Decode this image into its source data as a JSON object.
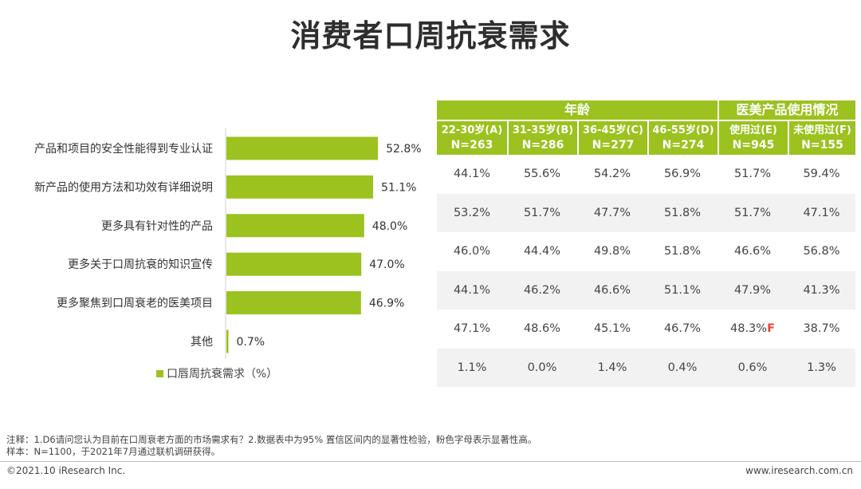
{
  "title": "消费者口周抗衰需求",
  "chart_data": {
    "type": "bar",
    "orientation": "horizontal",
    "categories": [
      "产品和项目的安全性能得到专业认证",
      "新产品的使用方法和功效有详细说明",
      "更多具有针对性的产品",
      "更多关于口周抗衰的知识宣传",
      "更多聚焦到口周衰老的医美项目",
      "其他"
    ],
    "values": [
      52.8,
      51.1,
      48.0,
      47.0,
      46.9,
      0.7
    ],
    "value_labels": [
      "52.8%",
      "51.1%",
      "48.0%",
      "47.0%",
      "46.9%",
      "0.7%"
    ],
    "series": [
      {
        "name": "口唇周抗衰需求（%）",
        "color": "#9bc21f"
      }
    ],
    "legend_position": "bottom",
    "grid": false
  },
  "table": {
    "groups": [
      {
        "label": "年龄",
        "span": 4
      },
      {
        "label": "医美产品使用情况",
        "span": 2
      }
    ],
    "columns": [
      {
        "label": "22-30岁(A)",
        "n": "N=263"
      },
      {
        "label": "31-35岁(B)",
        "n": "N=286"
      },
      {
        "label": "36-45岁(C)",
        "n": "N=277"
      },
      {
        "label": "46-55岁(D)",
        "n": "N=274"
      },
      {
        "label": "使用过(E)",
        "n": "N=945"
      },
      {
        "label": "未使用过(F)",
        "n": "N=155"
      }
    ],
    "rows": [
      [
        {
          "v": "44.1%"
        },
        {
          "v": "55.6%"
        },
        {
          "v": "54.2%"
        },
        {
          "v": "56.9%"
        },
        {
          "v": "51.7%"
        },
        {
          "v": "59.4%"
        }
      ],
      [
        {
          "v": "53.2%"
        },
        {
          "v": "51.7%"
        },
        {
          "v": "47.7%"
        },
        {
          "v": "51.8%"
        },
        {
          "v": "51.7%"
        },
        {
          "v": "47.1%"
        }
      ],
      [
        {
          "v": "46.0%"
        },
        {
          "v": "44.4%"
        },
        {
          "v": "49.8%"
        },
        {
          "v": "51.8%"
        },
        {
          "v": "46.6%"
        },
        {
          "v": "56.8%"
        }
      ],
      [
        {
          "v": "44.1%"
        },
        {
          "v": "46.2%"
        },
        {
          "v": "46.6%"
        },
        {
          "v": "51.1%"
        },
        {
          "v": "47.9%"
        },
        {
          "v": "41.3%"
        }
      ],
      [
        {
          "v": "47.1%"
        },
        {
          "v": "48.6%"
        },
        {
          "v": "45.1%"
        },
        {
          "v": "46.7%"
        },
        {
          "v": "48.3%",
          "sig": "F"
        },
        {
          "v": "38.7%"
        }
      ],
      [
        {
          "v": "1.1%"
        },
        {
          "v": "0.0%"
        },
        {
          "v": "1.4%"
        },
        {
          "v": "0.4%"
        },
        {
          "v": "0.6%"
        },
        {
          "v": "1.3%"
        }
      ]
    ],
    "header_color": "#9bc21f",
    "significance_color": "#e8463e"
  },
  "notes": {
    "note1": "注释：1.D6请问您认为目前在口周衰老方面的市场需求有？2.数据表中为95% 置信区间内的显著性检验，粉色字母表示显著性高。",
    "note2": "样本：N=1100，于2021年7月通过联机调研获得。"
  },
  "footer": {
    "copyright": "©2021.10 iResearch Inc.",
    "url": "www.iresearch.com.cn"
  }
}
